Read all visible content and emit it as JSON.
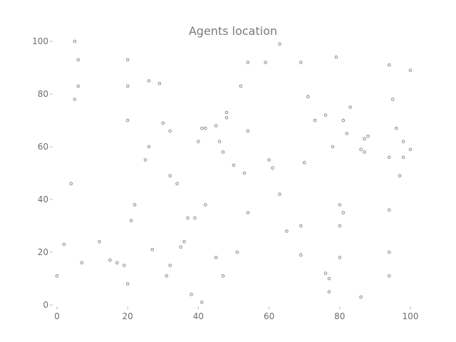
{
  "chart_data": {
    "type": "scatter",
    "title": "Agents location",
    "xlabel": "",
    "ylabel": "",
    "xlim": [
      0,
      100
    ],
    "ylim": [
      0,
      100
    ],
    "xticks": [
      0,
      20,
      40,
      60,
      80,
      100
    ],
    "yticks": [
      0,
      20,
      40,
      60,
      80,
      100
    ],
    "grid": false,
    "legend": "none",
    "series": [
      {
        "color": "#8a8a8a",
        "points": [
          [
            0,
            11
          ],
          [
            2,
            23
          ],
          [
            4,
            46
          ],
          [
            5,
            78
          ],
          [
            5,
            100
          ],
          [
            6,
            93
          ],
          [
            6,
            83
          ],
          [
            7,
            16
          ],
          [
            12,
            24
          ],
          [
            15,
            17
          ],
          [
            17,
            16
          ],
          [
            19,
            15
          ],
          [
            20,
            93
          ],
          [
            20,
            83
          ],
          [
            20,
            70
          ],
          [
            20,
            8
          ],
          [
            21,
            32
          ],
          [
            22,
            38
          ],
          [
            25,
            55
          ],
          [
            26,
            85
          ],
          [
            26,
            60
          ],
          [
            27,
            21
          ],
          [
            29,
            84
          ],
          [
            30,
            69
          ],
          [
            31,
            11
          ],
          [
            32,
            66
          ],
          [
            32,
            49
          ],
          [
            32,
            15
          ],
          [
            34,
            46
          ],
          [
            35,
            22
          ],
          [
            36,
            24
          ],
          [
            37,
            33
          ],
          [
            38,
            4
          ],
          [
            39,
            33
          ],
          [
            40,
            62
          ],
          [
            41,
            67
          ],
          [
            41,
            1
          ],
          [
            42,
            67
          ],
          [
            42,
            38
          ],
          [
            45,
            68
          ],
          [
            45,
            18
          ],
          [
            46,
            62
          ],
          [
            47,
            58
          ],
          [
            47,
            11
          ],
          [
            48,
            73
          ],
          [
            48,
            71
          ],
          [
            50,
            53
          ],
          [
            51,
            20
          ],
          [
            52,
            83
          ],
          [
            53,
            50
          ],
          [
            54,
            92
          ],
          [
            54,
            66
          ],
          [
            54,
            35
          ],
          [
            59,
            92
          ],
          [
            60,
            55
          ],
          [
            61,
            52
          ],
          [
            63,
            99
          ],
          [
            63,
            42
          ],
          [
            65,
            28
          ],
          [
            69,
            92
          ],
          [
            69,
            30
          ],
          [
            69,
            19
          ],
          [
            70,
            54
          ],
          [
            71,
            79
          ],
          [
            73,
            70
          ],
          [
            76,
            72
          ],
          [
            76,
            12
          ],
          [
            77,
            10
          ],
          [
            77,
            5
          ],
          [
            78,
            60
          ],
          [
            79,
            94
          ],
          [
            80,
            38
          ],
          [
            80,
            30
          ],
          [
            80,
            18
          ],
          [
            81,
            70
          ],
          [
            81,
            35
          ],
          [
            82,
            65
          ],
          [
            83,
            75
          ],
          [
            86,
            59
          ],
          [
            86,
            3
          ],
          [
            87,
            58
          ],
          [
            87,
            63
          ],
          [
            88,
            64
          ],
          [
            94,
            91
          ],
          [
            94,
            56
          ],
          [
            94,
            36
          ],
          [
            94,
            20
          ],
          [
            94,
            11
          ],
          [
            95,
            78
          ],
          [
            96,
            67
          ],
          [
            97,
            49
          ],
          [
            98,
            62
          ],
          [
            98,
            56
          ],
          [
            100,
            89
          ],
          [
            100,
            59
          ]
        ]
      }
    ]
  }
}
